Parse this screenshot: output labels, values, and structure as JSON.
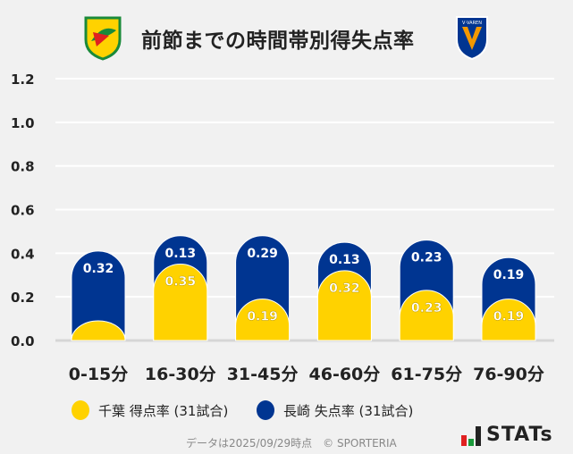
{
  "header": {
    "title": "前節までの時間帯別得失点率",
    "home_logo": "jef-chiba-crest",
    "away_logo": "v-varen-nagasaki-crest",
    "away_logo_text": "V·VAREN"
  },
  "chart_data": {
    "type": "bar",
    "stacked": true,
    "categories": [
      "0-15分",
      "16-30分",
      "31-45分",
      "46-60分",
      "61-75分",
      "76-90分"
    ],
    "series": [
      {
        "name": "千葉 得点率 (31試合)",
        "color": "#ffd200",
        "values": [
          0.09,
          0.35,
          0.19,
          0.32,
          0.23,
          0.19
        ],
        "labels": [
          "",
          "0.35",
          "0.19",
          "0.32",
          "0.23",
          "0.19"
        ]
      },
      {
        "name": "長崎 失点率 (31試合)",
        "color": "#003591",
        "values": [
          0.32,
          0.13,
          0.29,
          0.13,
          0.23,
          0.19
        ],
        "labels": [
          "0.32",
          "0.13",
          "0.29",
          "0.13",
          "0.23",
          "0.19"
        ]
      }
    ],
    "ylim": [
      0,
      1.2
    ],
    "yticks": [
      "0.0",
      "0.2",
      "0.4",
      "0.6",
      "0.8",
      "1.0",
      "1.2"
    ],
    "grid": true,
    "legend": "bottom"
  },
  "footer": {
    "note": "データは2025/09/29時点　© SPORTERIA",
    "brand": "STATs"
  }
}
